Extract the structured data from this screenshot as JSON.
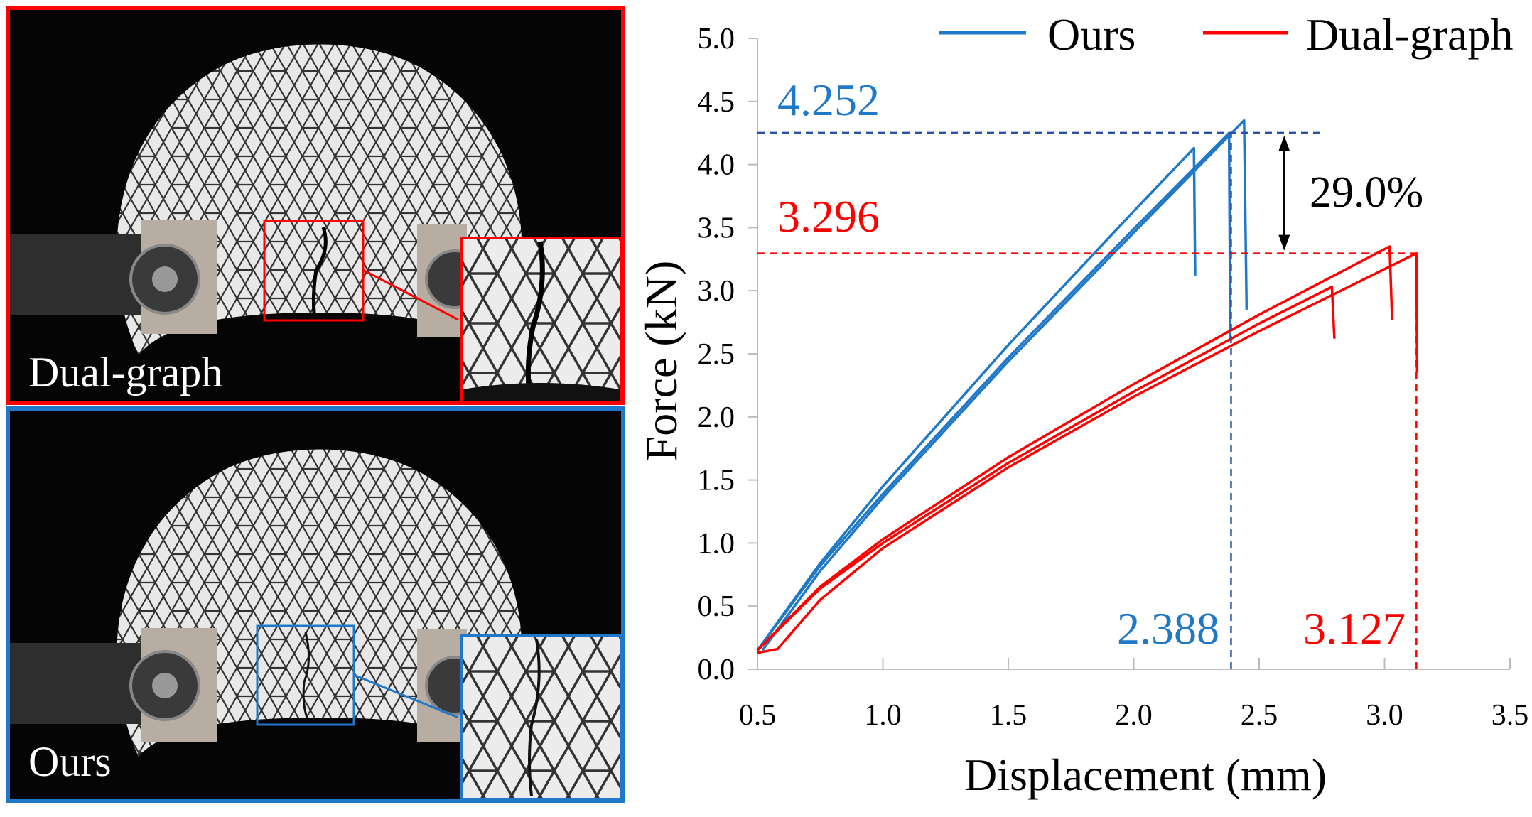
{
  "panels": {
    "top": {
      "label": "Dual-graph",
      "border_color": "#ff0000"
    },
    "bottom": {
      "label": "Ours",
      "border_color": "#1f78c8"
    }
  },
  "chart_data": {
    "type": "line",
    "xlabel": "Displacement (mm)",
    "ylabel": "Force (kN)",
    "xlim": [
      0.5,
      3.5
    ],
    "ylim": [
      0,
      5.0
    ],
    "xticks": [
      "0.5",
      "1.0",
      "1.5",
      "2.0",
      "2.5",
      "3.0",
      "3.5"
    ],
    "yticks": [
      "0.0",
      "0.5",
      "1.0",
      "1.5",
      "2.0",
      "2.5",
      "3.0",
      "3.5",
      "4.0",
      "4.5",
      "5.0"
    ],
    "grid": false,
    "legend_placement": "top",
    "series": [
      {
        "name": "Ours",
        "color": "#1f78c8",
        "curves": [
          [
            [
              0.5,
              0.15
            ],
            [
              0.75,
              0.84
            ],
            [
              1.0,
              1.45
            ],
            [
              1.5,
              2.57
            ],
            [
              2.0,
              3.63
            ],
            [
              2.24,
              4.13
            ],
            [
              2.245,
              3.12
            ]
          ],
          [
            [
              0.5,
              0.15
            ],
            [
              0.75,
              0.82
            ],
            [
              1.0,
              1.39
            ],
            [
              1.5,
              2.47
            ],
            [
              2.0,
              3.49
            ],
            [
              2.38,
              4.25
            ],
            [
              2.385,
              2.6
            ]
          ],
          [
            [
              0.52,
              0.15
            ],
            [
              0.75,
              0.78
            ],
            [
              1.0,
              1.36
            ],
            [
              1.5,
              2.44
            ],
            [
              2.0,
              3.46
            ],
            [
              2.44,
              4.35
            ],
            [
              2.45,
              2.85
            ]
          ]
        ]
      },
      {
        "name": "Dual-graph",
        "color": "#ff0000",
        "curves": [
          [
            [
              0.5,
              0.15
            ],
            [
              0.75,
              0.64
            ],
            [
              1.0,
              1.0
            ],
            [
              1.5,
              1.635
            ],
            [
              2.0,
              2.2
            ],
            [
              2.5,
              2.74
            ],
            [
              2.79,
              3.03
            ],
            [
              2.8,
              2.62
            ]
          ],
          [
            [
              0.5,
              0.15
            ],
            [
              0.75,
              0.654
            ],
            [
              1.0,
              1.03
            ],
            [
              1.5,
              1.68
            ],
            [
              2.0,
              2.26
            ],
            [
              2.5,
              2.81
            ],
            [
              3.02,
              3.35
            ],
            [
              3.03,
              2.77
            ]
          ],
          [
            [
              0.5,
              0.13
            ],
            [
              0.58,
              0.16
            ],
            [
              0.75,
              0.55
            ],
            [
              1.0,
              0.96
            ],
            [
              1.5,
              1.6
            ],
            [
              2.0,
              2.16
            ],
            [
              2.5,
              2.68
            ],
            [
              3.127,
              3.296
            ],
            [
              3.13,
              2.35
            ]
          ]
        ]
      }
    ],
    "annotations": {
      "ours_peak": {
        "value": "4.252",
        "y": 4.252,
        "x_end": 2.75
      },
      "dual_peak": {
        "value": "3.296",
        "y": 3.296,
        "x_end": 3.127
      },
      "ours_disp": {
        "value": "2.388",
        "x": 2.388
      },
      "dual_disp": {
        "value": "3.127",
        "x": 3.127
      },
      "improvement": {
        "value": "29.0%",
        "x": 2.6
      }
    }
  }
}
